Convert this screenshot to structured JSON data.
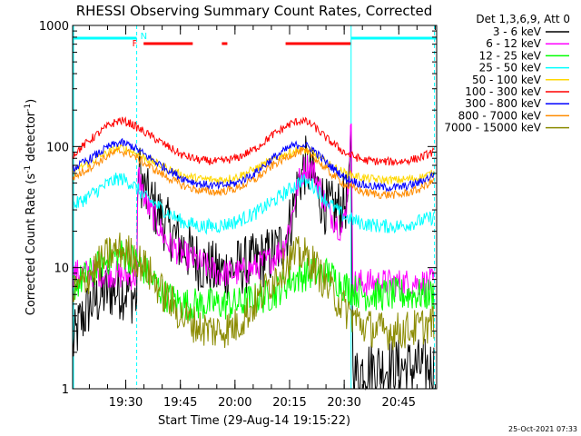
{
  "chart_data": {
    "type": "line",
    "title": "RHESSI Observing Summary Count Rates, Corrected",
    "xlabel": "Start Time (29-Aug-14 19:15:22)",
    "ylabel_parts": [
      "Corrected Count Rate (s",
      "-1",
      " detector",
      "-1",
      ")"
    ],
    "yscale": "log",
    "ylim": [
      1,
      1000
    ],
    "xlim_minutes": [
      0,
      100
    ],
    "grid": false,
    "legend_placement": "right",
    "legend_title": "Det 1,3,6,9, Att 0",
    "date_stamp": "25-Oct-2021 07:33",
    "x_ticks": [
      {
        "label": "19:30",
        "minute": 14.6
      },
      {
        "label": "19:45",
        "minute": 29.6
      },
      {
        "label": "20:00",
        "minute": 44.6
      },
      {
        "label": "20:15",
        "minute": 59.6
      },
      {
        "label": "20:30",
        "minute": 74.6
      },
      {
        "label": "20:45",
        "minute": 89.6
      }
    ],
    "y_ticks": [
      {
        "label": "1",
        "value": 1
      },
      {
        "label": "10",
        "value": 10
      },
      {
        "label": "100",
        "value": 100
      },
      {
        "label": "1000",
        "value": 1000
      }
    ],
    "flags": [
      {
        "label": "N",
        "color": "#00ffff",
        "segments": [
          [
            0,
            17.6
          ],
          [
            76.5,
            100
          ]
        ]
      },
      {
        "label": "F",
        "color": "#ff0000",
        "segments": [
          [
            19.5,
            33
          ],
          [
            41,
            42.5
          ],
          [
            58.5,
            76.5
          ]
        ]
      }
    ],
    "markers_minutes": [
      17.6,
      76.5,
      99.4
    ],
    "series": [
      {
        "name": "3 - 6 keV",
        "color": "#000000",
        "x": [
          0,
          2,
          5,
          10,
          15,
          17.6,
          18,
          20,
          23,
          26,
          30,
          35,
          40,
          45,
          50,
          55,
          58,
          60,
          62,
          64,
          66,
          68,
          70,
          72,
          74,
          75,
          76,
          76.5,
          77,
          80,
          85,
          90,
          95,
          99
        ],
        "y": [
          2.2,
          3.5,
          5,
          6.5,
          6.5,
          5.5,
          70,
          40,
          30,
          22,
          15,
          11,
          9,
          10,
          11,
          13,
          16,
          25,
          50,
          70,
          55,
          40,
          30,
          30,
          32,
          35,
          40,
          150,
          1.2,
          1.5,
          1.5,
          1.5,
          1.5,
          1.5
        ],
        "noise": 0.25
      },
      {
        "name": "6 - 12 keV",
        "color": "#ff00ff",
        "x": [
          0,
          5,
          10,
          15,
          17.6,
          18,
          20,
          23,
          26,
          30,
          35,
          40,
          45,
          50,
          55,
          58,
          60,
          62,
          64,
          66,
          68,
          70,
          72,
          74,
          75,
          76,
          76.5,
          77,
          80,
          85,
          90,
          95,
          99
        ],
        "y": [
          9,
          9,
          9,
          8.5,
          8.5,
          60,
          35,
          24,
          16,
          13,
          11,
          9,
          9,
          10,
          12,
          15,
          25,
          50,
          70,
          65,
          45,
          30,
          25,
          20,
          30,
          60,
          180,
          7.5,
          7.5,
          7.5,
          7.5,
          7.5,
          7.5
        ],
        "noise": 0.12
      },
      {
        "name": "12 - 25 keV",
        "color": "#00ff00",
        "x": [
          0,
          5,
          10,
          14,
          18,
          22,
          25,
          30,
          35,
          40,
          45,
          50,
          55,
          60,
          65,
          70,
          75,
          80,
          85,
          90,
          95,
          99
        ],
        "y": [
          7,
          9,
          12,
          13,
          11,
          8,
          6,
          5,
          5,
          5,
          5,
          5.5,
          6,
          8,
          9,
          9,
          7,
          6,
          6,
          6,
          6,
          6
        ],
        "noise": 0.14
      },
      {
        "name": "25 - 50 keV",
        "color": "#00ffff",
        "x": [
          0,
          5,
          10,
          13,
          16,
          20,
          25,
          30,
          35,
          40,
          45,
          50,
          55,
          60,
          63,
          66,
          70,
          75,
          80,
          85,
          90,
          95,
          99
        ],
        "y": [
          32,
          40,
          50,
          55,
          50,
          38,
          30,
          24,
          22,
          22,
          24,
          28,
          35,
          45,
          53,
          48,
          35,
          26,
          23,
          22,
          22,
          24,
          26
        ],
        "noise": 0.06
      },
      {
        "name": "50 - 100 keV",
        "color": "#ffd700",
        "x": [
          0,
          5,
          10,
          13,
          16,
          20,
          25,
          30,
          35,
          40,
          45,
          50,
          55,
          60,
          63,
          66,
          70,
          75,
          80,
          85,
          90,
          95,
          99
        ],
        "y": [
          62,
          75,
          90,
          98,
          92,
          80,
          68,
          58,
          54,
          53,
          56,
          65,
          78,
          90,
          95,
          88,
          72,
          60,
          55,
          53,
          53,
          55,
          60
        ],
        "noise": 0.035
      },
      {
        "name": "100 - 300 keV",
        "color": "#ff0000",
        "x": [
          0,
          5,
          10,
          13,
          16,
          20,
          25,
          30,
          35,
          40,
          45,
          50,
          55,
          60,
          63,
          66,
          70,
          75,
          80,
          85,
          90,
          95,
          99
        ],
        "y": [
          85,
          115,
          150,
          165,
          155,
          130,
          105,
          85,
          77,
          75,
          80,
          95,
          125,
          155,
          165,
          150,
          115,
          88,
          77,
          75,
          75,
          80,
          90
        ],
        "noise": 0.035
      },
      {
        "name": "300 - 800 keV",
        "color": "#0000ff",
        "x": [
          0,
          5,
          10,
          13,
          16,
          20,
          25,
          30,
          35,
          40,
          45,
          50,
          55,
          60,
          63,
          66,
          70,
          75,
          80,
          85,
          90,
          95,
          99
        ],
        "y": [
          65,
          80,
          100,
          108,
          102,
          85,
          68,
          55,
          49,
          47,
          50,
          60,
          80,
          100,
          105,
          95,
          72,
          55,
          48,
          46,
          46,
          50,
          58
        ],
        "noise": 0.035
      },
      {
        "name": "800 - 7000 keV",
        "color": "#ff8c00",
        "x": [
          0,
          5,
          10,
          13,
          16,
          20,
          25,
          30,
          35,
          40,
          45,
          50,
          55,
          60,
          63,
          66,
          70,
          75,
          80,
          85,
          90,
          95,
          99
        ],
        "y": [
          55,
          68,
          85,
          92,
          87,
          72,
          58,
          48,
          43,
          42,
          45,
          53,
          70,
          86,
          92,
          84,
          63,
          48,
          42,
          40,
          40,
          44,
          52
        ],
        "noise": 0.035
      },
      {
        "name": "7000 - 15000 keV",
        "color": "#8b8b00",
        "x": [
          0,
          5,
          10,
          13,
          16,
          20,
          25,
          30,
          35,
          40,
          45,
          50,
          55,
          60,
          63,
          66,
          70,
          75,
          80,
          85,
          90,
          95,
          99
        ],
        "y": [
          6,
          9,
          13,
          14,
          13,
          10,
          6,
          4,
          3.2,
          3,
          3.3,
          5,
          8,
          12,
          13,
          11,
          7,
          4.5,
          3.3,
          3,
          3,
          3.2,
          3.5
        ],
        "noise": 0.16
      }
    ]
  }
}
